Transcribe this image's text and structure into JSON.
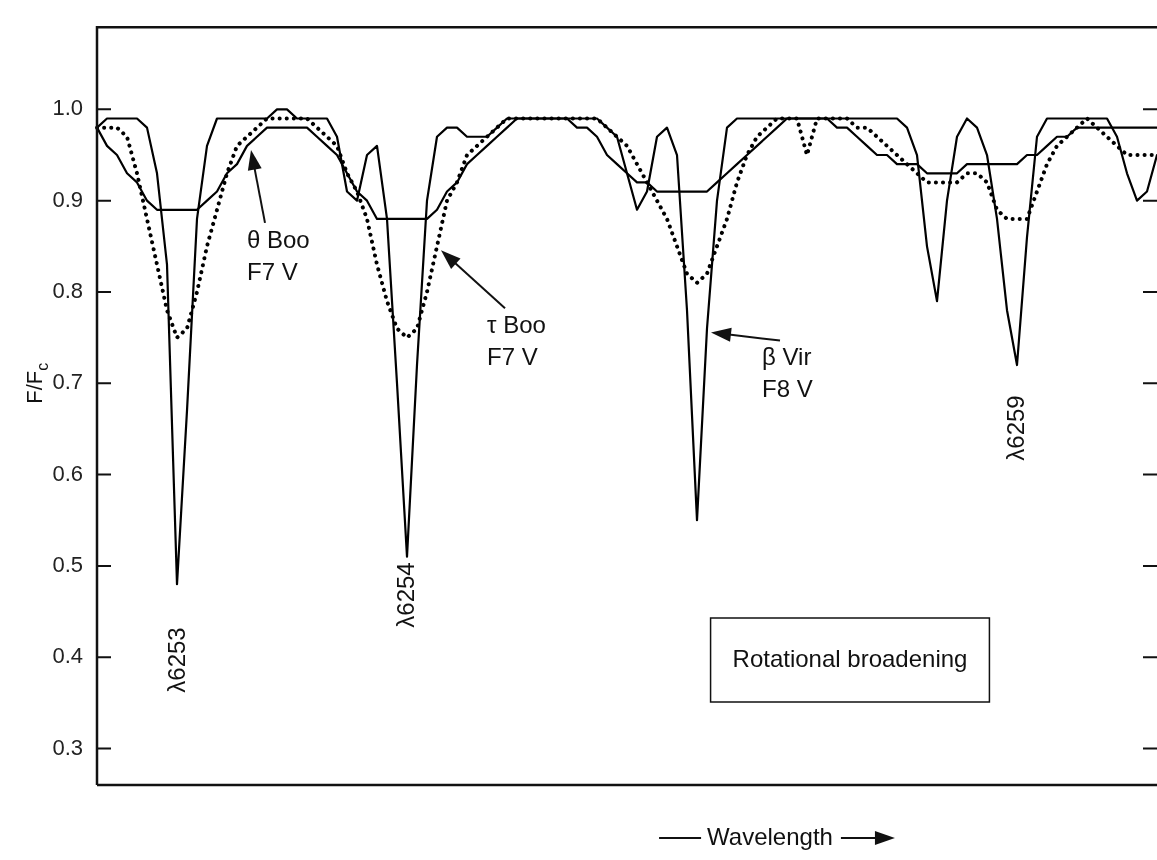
{
  "chart_data": {
    "type": "line",
    "xlabel": "Wavelength",
    "ylabel": "F/F$_{c}$",
    "categories": [
      null,
      null,
      null,
      null,
      null,
      null,
      null,
      null,
      null,
      null,
      null,
      null,
      null,
      null,
      null,
      null,
      null,
      null,
      null,
      null,
      null,
      null,
      null,
      null,
      null,
      null,
      null,
      null,
      null,
      null,
      null,
      null,
      null,
      null,
      null,
      null,
      null,
      null,
      null,
      null,
      null,
      null,
      null,
      null,
      null,
      null,
      null,
      null,
      null,
      null,
      null,
      null,
      null,
      null,
      null,
      null,
      null,
      null,
      null,
      null,
      null,
      null,
      null,
      null,
      null,
      null,
      null,
      null,
      null,
      null,
      null,
      null,
      null,
      null,
      null,
      null,
      null,
      null,
      null,
      null,
      null,
      null,
      null,
      null,
      null,
      null,
      null,
      null,
      null,
      null,
      null,
      null,
      null,
      null,
      null,
      null,
      null,
      null,
      null,
      null,
      null,
      null,
      null,
      null,
      null,
      null,
      null
    ],
    "series": [
      {
        "name": "θ Boo F7 V",
        "color": "#000000",
        "line_style": "solid",
        "values": [
          0.98,
          0.96,
          0.95,
          0.93,
          0.92,
          0.9,
          0.89,
          0.89,
          0.89,
          0.89,
          0.89,
          0.9,
          0.91,
          0.93,
          0.94,
          0.96,
          0.97,
          0.98,
          0.98,
          0.98,
          0.98,
          0.98,
          0.97,
          0.96,
          0.95,
          0.93,
          0.91,
          0.9,
          0.88,
          0.88,
          0.88,
          0.88,
          0.88,
          0.88,
          0.89,
          0.91,
          0.92,
          0.94,
          0.95,
          0.96,
          0.97,
          0.98,
          0.99,
          0.99,
          0.99,
          0.99,
          0.99,
          0.99,
          0.98,
          0.98,
          0.97,
          0.95,
          0.94,
          0.93,
          0.92,
          0.92,
          0.91,
          0.91,
          0.91,
          0.91,
          0.91,
          0.91,
          0.92,
          0.93,
          0.94,
          0.95,
          0.96,
          0.97,
          0.98,
          0.99,
          0.99,
          0.99,
          0.99,
          0.99,
          0.98,
          0.98,
          0.97,
          0.96,
          0.95,
          0.95,
          0.94,
          0.94,
          0.94,
          0.93,
          0.93,
          0.93,
          0.93,
          0.94,
          0.94,
          0.94,
          0.94,
          0.94,
          0.94,
          0.95,
          0.95,
          0.96,
          0.97,
          0.97,
          0.98,
          0.98,
          0.98,
          0.98,
          0.98,
          0.98,
          0.98,
          0.98,
          0.98
        ]
      },
      {
        "name": "τ Boo F7 V",
        "color": "#000000",
        "line_style": "dotted",
        "values": [
          0.98,
          0.98,
          0.98,
          0.97,
          0.93,
          0.88,
          0.83,
          0.78,
          0.75,
          0.76,
          0.8,
          0.85,
          0.89,
          0.93,
          0.96,
          0.97,
          0.98,
          0.99,
          0.99,
          0.99,
          0.99,
          0.99,
          0.98,
          0.97,
          0.96,
          0.93,
          0.91,
          0.88,
          0.83,
          0.79,
          0.76,
          0.75,
          0.76,
          0.8,
          0.85,
          0.9,
          0.92,
          0.95,
          0.96,
          0.97,
          0.98,
          0.99,
          0.99,
          0.99,
          0.99,
          0.99,
          0.99,
          0.99,
          0.99,
          0.99,
          0.99,
          0.98,
          0.97,
          0.96,
          0.94,
          0.92,
          0.9,
          0.88,
          0.85,
          0.82,
          0.81,
          0.82,
          0.85,
          0.88,
          0.92,
          0.95,
          0.97,
          0.98,
          0.99,
          0.99,
          0.99,
          0.95,
          0.99,
          0.99,
          0.99,
          0.99,
          0.98,
          0.98,
          0.97,
          0.96,
          0.95,
          0.94,
          0.93,
          0.92,
          0.92,
          0.92,
          0.92,
          0.93,
          0.93,
          0.92,
          0.89,
          0.88,
          0.88,
          0.88,
          0.91,
          0.94,
          0.96,
          0.97,
          0.98,
          0.99,
          0.98,
          0.97,
          0.96,
          0.95,
          0.95,
          0.95,
          0.95
        ]
      },
      {
        "name": "β Vir F8 V",
        "color": "#000000",
        "line_style": "solid",
        "values": [
          0.98,
          0.99,
          0.99,
          0.99,
          0.99,
          0.98,
          0.93,
          0.83,
          0.48,
          0.67,
          0.88,
          0.96,
          0.99,
          0.99,
          0.99,
          0.99,
          0.99,
          0.99,
          1.0,
          1.0,
          0.99,
          0.99,
          0.99,
          0.99,
          0.97,
          0.91,
          0.9,
          0.95,
          0.96,
          0.88,
          0.7,
          0.51,
          0.72,
          0.9,
          0.97,
          0.98,
          0.98,
          0.97,
          0.97,
          0.97,
          0.98,
          0.99,
          0.99,
          0.99,
          0.99,
          0.99,
          0.99,
          0.99,
          0.99,
          0.99,
          0.99,
          0.98,
          0.97,
          0.93,
          0.89,
          0.91,
          0.97,
          0.98,
          0.95,
          0.78,
          0.55,
          0.76,
          0.9,
          0.98,
          0.99,
          0.99,
          0.99,
          0.99,
          0.99,
          0.99,
          0.99,
          0.99,
          0.99,
          0.99,
          0.99,
          0.99,
          0.99,
          0.99,
          0.99,
          0.99,
          0.99,
          0.98,
          0.95,
          0.85,
          0.79,
          0.9,
          0.97,
          0.99,
          0.98,
          0.95,
          0.88,
          0.78,
          0.72,
          0.86,
          0.97,
          0.99,
          0.99,
          0.99,
          0.99,
          0.99,
          0.99,
          0.99,
          0.97,
          0.93,
          0.9,
          0.91,
          0.95
        ]
      }
    ],
    "ylim": [
      0.26,
      1.09
    ],
    "yticks": [
      0.3,
      0.4,
      0.5,
      0.6,
      0.7,
      0.8,
      0.9,
      {
        "value": 1,
        "label": "1.0"
      }
    ],
    "annotations": [
      "λ6253",
      "λ6254",
      "λ6259",
      "Rotational broadening"
    ],
    "legend": false,
    "grid": false
  }
}
